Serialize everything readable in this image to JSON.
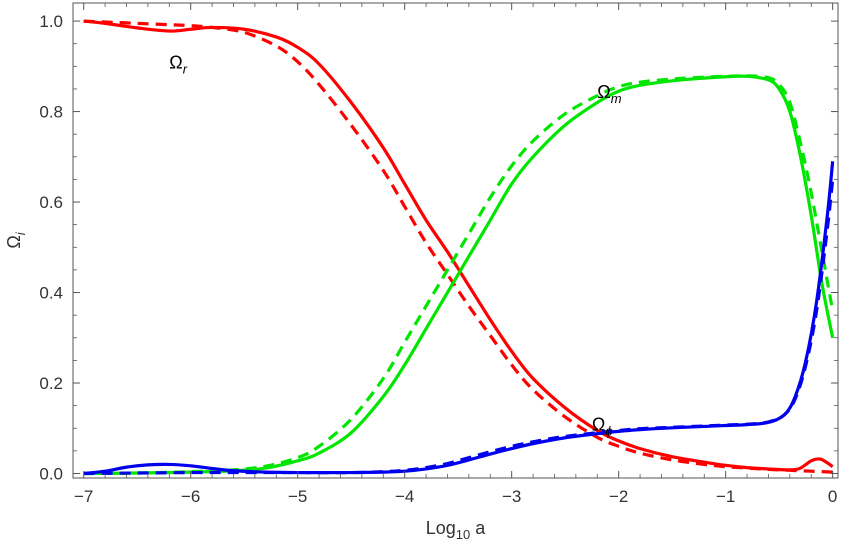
{
  "chart_data": {
    "type": "line",
    "title": "",
    "xlabel": {
      "main": "Log",
      "sub": "10",
      "tail": " a"
    },
    "ylabel": {
      "main": "Ω",
      "sub": "i"
    },
    "xlim": [
      -7.1,
      0.05
    ],
    "ylim": [
      -0.01,
      1.04
    ],
    "xticks": [
      -7,
      -6,
      -5,
      -4,
      -3,
      -2,
      -1,
      0
    ],
    "xtick_labels": [
      "−7",
      "−6",
      "−5",
      "−4",
      "−3",
      "−2",
      "−1",
      "0"
    ],
    "yticks": [
      0.0,
      0.2,
      0.4,
      0.6,
      0.8,
      1.0
    ],
    "ytick_labels": [
      "0.0",
      "0.2",
      "0.4",
      "0.6",
      "0.8",
      "1.0"
    ],
    "x_minor_step": 0.2,
    "y_minor_step": 0.05,
    "frame": true,
    "grid": false,
    "series": [
      {
        "color": "#ff0000",
        "style": "solid",
        "x": [
          -7,
          -6.8,
          -6.5,
          -6.2,
          -6.0,
          -5.8,
          -5.5,
          -5.2,
          -5.0,
          -4.8,
          -4.5,
          -4.2,
          -4.0,
          -3.8,
          -3.6,
          -3.4,
          -3.2,
          -3.0,
          -2.8,
          -2.5,
          -2.2,
          -2.0,
          -1.8,
          -1.5,
          -1.2,
          -1.0,
          -0.8,
          -0.6,
          -0.4,
          -0.3,
          -0.2,
          -0.12,
          -0.06,
          0
        ],
        "y": [
          1.0,
          0.995,
          0.985,
          0.978,
          0.982,
          0.986,
          0.982,
          0.965,
          0.942,
          0.905,
          0.82,
          0.72,
          0.64,
          0.56,
          0.49,
          0.415,
          0.34,
          0.27,
          0.21,
          0.145,
          0.095,
          0.072,
          0.055,
          0.037,
          0.025,
          0.018,
          0.013,
          0.01,
          0.008,
          0.012,
          0.028,
          0.032,
          0.025,
          0.015
        ]
      },
      {
        "color": "#ff0000",
        "style": "dashed",
        "x": [
          -7,
          -6.8,
          -6.5,
          -6.2,
          -6.0,
          -5.8,
          -5.5,
          -5.2,
          -5.0,
          -4.8,
          -4.5,
          -4.2,
          -4.0,
          -3.8,
          -3.6,
          -3.4,
          -3.2,
          -3.0,
          -2.8,
          -2.5,
          -2.2,
          -2.0,
          -1.8,
          -1.5,
          -1.2,
          -1.0,
          -0.8,
          -0.6,
          -0.4,
          -0.2,
          0
        ],
        "y": [
          1.0,
          0.998,
          0.995,
          0.992,
          0.99,
          0.986,
          0.975,
          0.945,
          0.91,
          0.86,
          0.77,
          0.67,
          0.59,
          0.51,
          0.44,
          0.37,
          0.305,
          0.24,
          0.185,
          0.125,
          0.08,
          0.06,
          0.045,
          0.03,
          0.02,
          0.015,
          0.012,
          0.009,
          0.007,
          0.005,
          0.003
        ]
      },
      {
        "color": "#00e600",
        "style": "solid",
        "x": [
          -7,
          -6.5,
          -6.0,
          -5.6,
          -5.3,
          -5.0,
          -4.8,
          -4.5,
          -4.2,
          -4.0,
          -3.8,
          -3.6,
          -3.4,
          -3.2,
          -3.0,
          -2.8,
          -2.5,
          -2.2,
          -2.0,
          -1.8,
          -1.5,
          -1.2,
          -1.0,
          -0.8,
          -0.6,
          -0.5,
          -0.4,
          -0.3,
          -0.2,
          -0.1,
          0
        ],
        "y": [
          0.0,
          0.001,
          0.003,
          0.006,
          0.012,
          0.028,
          0.045,
          0.09,
          0.17,
          0.24,
          0.32,
          0.4,
          0.48,
          0.56,
          0.64,
          0.7,
          0.77,
          0.82,
          0.845,
          0.858,
          0.868,
          0.874,
          0.877,
          0.878,
          0.87,
          0.85,
          0.8,
          0.7,
          0.57,
          0.42,
          0.3
        ]
      },
      {
        "color": "#00e600",
        "style": "dashed",
        "x": [
          -7,
          -6.5,
          -6.0,
          -5.6,
          -5.3,
          -5.0,
          -4.8,
          -4.5,
          -4.2,
          -4.0,
          -3.8,
          -3.6,
          -3.4,
          -3.2,
          -3.0,
          -2.8,
          -2.5,
          -2.2,
          -2.0,
          -1.8,
          -1.5,
          -1.2,
          -1.0,
          -0.8,
          -0.6,
          -0.5,
          -0.4,
          -0.3,
          -0.2,
          -0.1,
          0
        ],
        "y": [
          0.0,
          0.001,
          0.004,
          0.008,
          0.016,
          0.035,
          0.06,
          0.12,
          0.21,
          0.29,
          0.37,
          0.45,
          0.53,
          0.61,
          0.68,
          0.735,
          0.795,
          0.835,
          0.855,
          0.865,
          0.872,
          0.876,
          0.878,
          0.879,
          0.875,
          0.86,
          0.82,
          0.73,
          0.62,
          0.49,
          0.36
        ]
      },
      {
        "color": "#0000ee",
        "style": "solid",
        "x": [
          -7,
          -6.8,
          -6.6,
          -6.4,
          -6.2,
          -6.0,
          -5.8,
          -5.6,
          -5.3,
          -5.0,
          -4.5,
          -4.2,
          -4.0,
          -3.8,
          -3.6,
          -3.4,
          -3.2,
          -3.0,
          -2.8,
          -2.5,
          -2.2,
          -2.0,
          -1.8,
          -1.5,
          -1.2,
          -1.0,
          -0.8,
          -0.6,
          -0.45,
          -0.35,
          -0.25,
          -0.15,
          -0.05,
          0
        ],
        "y": [
          0.0,
          0.005,
          0.014,
          0.019,
          0.02,
          0.017,
          0.011,
          0.006,
          0.003,
          0.002,
          0.002,
          0.003,
          0.005,
          0.01,
          0.018,
          0.03,
          0.043,
          0.055,
          0.066,
          0.079,
          0.088,
          0.093,
          0.097,
          0.101,
          0.104,
          0.106,
          0.108,
          0.113,
          0.13,
          0.17,
          0.25,
          0.38,
          0.57,
          0.69
        ]
      },
      {
        "color": "#0000ee",
        "style": "dashed",
        "x": [
          -7,
          -6.5,
          -6.0,
          -5.5,
          -5.0,
          -4.5,
          -4.2,
          -4.0,
          -3.8,
          -3.6,
          -3.4,
          -3.2,
          -3.0,
          -2.8,
          -2.5,
          -2.2,
          -2.0,
          -1.8,
          -1.5,
          -1.2,
          -1.0,
          -0.8,
          -0.6,
          -0.45,
          -0.35,
          -0.25,
          -0.15,
          -0.05,
          0
        ],
        "y": [
          0.0,
          0.001,
          0.002,
          0.002,
          0.002,
          0.002,
          0.004,
          0.007,
          0.013,
          0.022,
          0.035,
          0.048,
          0.06,
          0.07,
          0.082,
          0.09,
          0.095,
          0.099,
          0.102,
          0.105,
          0.107,
          0.109,
          0.114,
          0.13,
          0.165,
          0.24,
          0.36,
          0.54,
          0.65
        ]
      }
    ],
    "annotations": [
      {
        "main": "Ω",
        "sub": "r",
        "x": -6.2,
        "y": 0.895
      },
      {
        "main": "Ω",
        "sub": "m",
        "x": -2.2,
        "y": 0.83
      },
      {
        "main": "Ω",
        "sub": "ϕ",
        "x": -2.25,
        "y": 0.095
      }
    ]
  }
}
